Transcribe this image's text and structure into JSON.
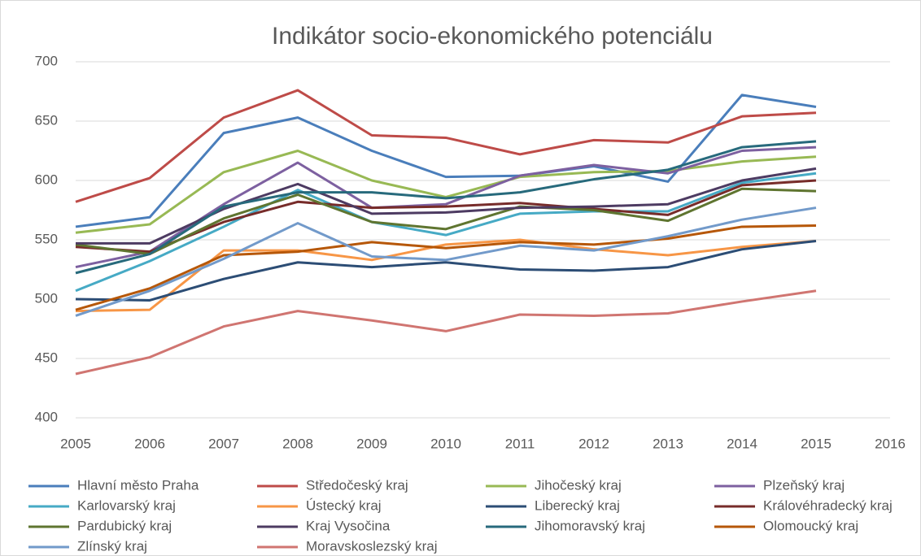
{
  "chart_data": {
    "type": "line",
    "title": "Indikátor socio-ekonomického potenciálu",
    "x": [
      2005,
      2006,
      2007,
      2008,
      2009,
      2010,
      2011,
      2012,
      2013,
      2014,
      2015
    ],
    "xlim": [
      2005,
      2016
    ],
    "xticks": [
      2005,
      2006,
      2007,
      2008,
      2009,
      2010,
      2011,
      2012,
      2013,
      2014,
      2015,
      2016
    ],
    "ylim": [
      400,
      700
    ],
    "yticks": [
      400,
      450,
      500,
      550,
      600,
      650,
      700
    ],
    "grid": true,
    "legend": "bottom",
    "series": [
      {
        "name": "Hlavní město Praha",
        "color": "#4a7ebb",
        "values": [
          561,
          569,
          640,
          653,
          625,
          603,
          604,
          612,
          599,
          672,
          662
        ]
      },
      {
        "name": "Středočeský kraj",
        "color": "#be4b48",
        "values": [
          582,
          602,
          653,
          676,
          638,
          636,
          622,
          634,
          632,
          654,
          657
        ]
      },
      {
        "name": "Jihočeský kraj",
        "color": "#98b954",
        "values": [
          556,
          563,
          607,
          625,
          600,
          586,
          603,
          607,
          608,
          616,
          620
        ]
      },
      {
        "name": "Plzeňský kraj",
        "color": "#7d60a0",
        "values": [
          527,
          540,
          580,
          615,
          577,
          580,
          604,
          613,
          606,
          625,
          628
        ]
      },
      {
        "name": "Karlovarský kraj",
        "color": "#46aac5",
        "values": [
          507,
          532,
          561,
          592,
          565,
          554,
          572,
          574,
          574,
          598,
          606
        ]
      },
      {
        "name": "Ústecký kraj",
        "color": "#f79646",
        "values": [
          490,
          491,
          541,
          541,
          533,
          546,
          550,
          542,
          537,
          544,
          549
        ]
      },
      {
        "name": "Liberecký kraj",
        "color": "#2c4d75",
        "values": [
          500,
          499,
          517,
          531,
          527,
          531,
          525,
          524,
          527,
          542,
          549
        ]
      },
      {
        "name": "Královéhradecký kraj",
        "color": "#772c2a",
        "values": [
          544,
          540,
          565,
          582,
          577,
          578,
          581,
          576,
          571,
          596,
          600
        ]
      },
      {
        "name": "Pardubický kraj",
        "color": "#5f7530",
        "values": [
          546,
          538,
          568,
          588,
          565,
          559,
          578,
          575,
          566,
          593,
          591
        ]
      },
      {
        "name": "Kraj Vysočina",
        "color": "#4d3b62",
        "values": [
          547,
          547,
          576,
          597,
          572,
          573,
          577,
          578,
          580,
          600,
          610
        ]
      },
      {
        "name": "Jihomoravský kraj",
        "color": "#276a7c",
        "values": [
          522,
          538,
          578,
          590,
          590,
          585,
          590,
          601,
          609,
          628,
          633
        ]
      },
      {
        "name": "Olomoucký kraj",
        "color": "#b65708",
        "values": [
          491,
          509,
          537,
          540,
          548,
          543,
          548,
          546,
          551,
          561,
          562
        ]
      },
      {
        "name": "Zlínský kraj",
        "color": "#729aca",
        "values": [
          486,
          507,
          534,
          564,
          536,
          533,
          545,
          541,
          553,
          567,
          577
        ]
      },
      {
        "name": "Moravskoslezský kraj",
        "color": "#d07571",
        "values": [
          437,
          451,
          477,
          490,
          482,
          473,
          487,
          486,
          488,
          498,
          507
        ]
      }
    ]
  }
}
